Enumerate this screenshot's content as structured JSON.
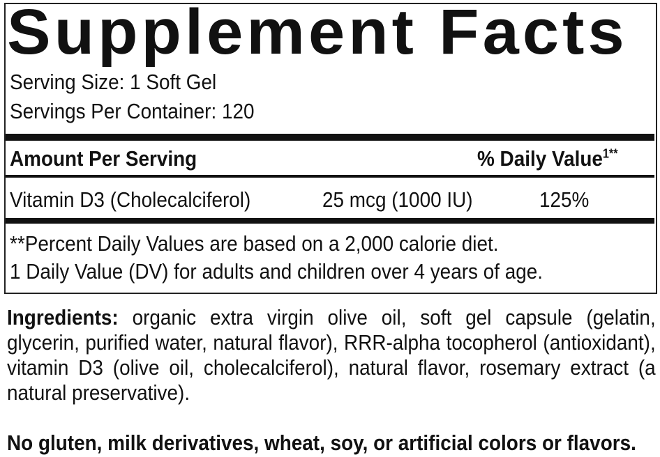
{
  "title": "Supplement Facts",
  "serving_size": "Serving Size: 1 Soft Gel",
  "servings_per_container": "Servings Per Container: 120",
  "header": {
    "amount": "Amount Per Serving",
    "daily_value": "% Daily Value",
    "dv_mark": "1**"
  },
  "nutrients": [
    {
      "name": "Vitamin D3 (Cholecalciferol)",
      "amount": "25 mcg (1000 IU)",
      "dv": "125%"
    }
  ],
  "footnotes": [
    "**Percent Daily Values are based on a 2,000 calorie diet.",
    "1 Daily Value (DV) for adults and children over 4 years of age."
  ],
  "ingredients": {
    "label": "Ingredients:",
    "text": " organic extra virgin olive oil, soft gel capsule (gelatin, glycerin, purified water, natural flavor), RRR-alpha tocopherol (antioxidant), vitamin D3 (olive oil, cholecalciferol), natural flavor, rosemary extract (a natural preservative)."
  },
  "allergen_statement": "No gluten, milk derivatives, wheat, soy, or artificial colors or flavors."
}
